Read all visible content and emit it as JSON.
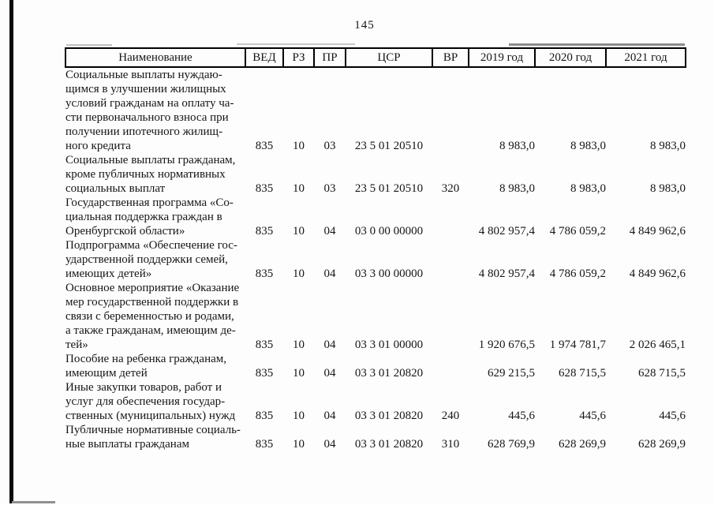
{
  "page_number": "145",
  "colors": {
    "ink": "#151515",
    "paper": "#fdfdfd"
  },
  "table": {
    "headers": [
      "Наименование",
      "ВЕД",
      "РЗ",
      "ПР",
      "ЦСР",
      "ВР",
      "2019 год",
      "2020 год",
      "2021 год"
    ],
    "rows": [
      {
        "name": "Социальные выплаты нуждаю-\nщимся в улучшении жилищных\nусловий гражданам на оплату ча-\nсти первоначального взноса при\nполучении ипотечного жилищ-\nного кредита",
        "ved": "835",
        "rz": "10",
        "pr": "03",
        "csr": "23 5 01 20510",
        "vr": "",
        "y2019": "8 983,0",
        "y2020": "8 983,0",
        "y2021": "8 983,0"
      },
      {
        "name": "Социальные выплаты гражданам,\nкроме публичных нормативных\nсоциальных выплат",
        "ved": "835",
        "rz": "10",
        "pr": "03",
        "csr": "23 5 01 20510",
        "vr": "320",
        "y2019": "8 983,0",
        "y2020": "8 983,0",
        "y2021": "8 983,0"
      },
      {
        "name": "Государственная программа «Со-\nциальная поддержка граждан в\nОренбургской области»",
        "ved": "835",
        "rz": "10",
        "pr": "04",
        "csr": "03 0 00 00000",
        "vr": "",
        "y2019": "4 802 957,4",
        "y2020": "4 786 059,2",
        "y2021": "4 849 962,6"
      },
      {
        "name": "Подпрограмма «Обеспечение гос-\nударственной поддержки семей,\nимеющих детей»",
        "ved": "835",
        "rz": "10",
        "pr": "04",
        "csr": "03 3 00 00000",
        "vr": "",
        "y2019": "4 802 957,4",
        "y2020": "4 786 059,2",
        "y2021": "4 849 962,6"
      },
      {
        "name": "Основное мероприятие «Оказание\nмер государственной поддержки в\nсвязи с беременностью и родами,\nа также гражданам, имеющим де-\nтей»",
        "ved": "835",
        "rz": "10",
        "pr": "04",
        "csr": "03 3 01 00000",
        "vr": "",
        "y2019": "1 920 676,5",
        "y2020": "1 974 781,7",
        "y2021": "2 026 465,1"
      },
      {
        "name": "Пособие на ребенка гражданам,\nимеющим детей",
        "ved": "835",
        "rz": "10",
        "pr": "04",
        "csr": "03 3 01 20820",
        "vr": "",
        "y2019": "629 215,5",
        "y2020": "628 715,5",
        "y2021": "628 715,5"
      },
      {
        "name": "Иные закупки товаров, работ и\nуслуг для обеспечения государ-\nственных (муниципальных) нужд",
        "ved": "835",
        "rz": "10",
        "pr": "04",
        "csr": "03 3 01 20820",
        "vr": "240",
        "y2019": "445,6",
        "y2020": "445,6",
        "y2021": "445,6"
      },
      {
        "name": "Публичные нормативные социаль-\nные выплаты гражданам",
        "ved": "835",
        "rz": "10",
        "pr": "04",
        "csr": "03 3 01 20820",
        "vr": "310",
        "y2019": "628 769,9",
        "y2020": "628 269,9",
        "y2021": "628 269,9"
      }
    ]
  }
}
